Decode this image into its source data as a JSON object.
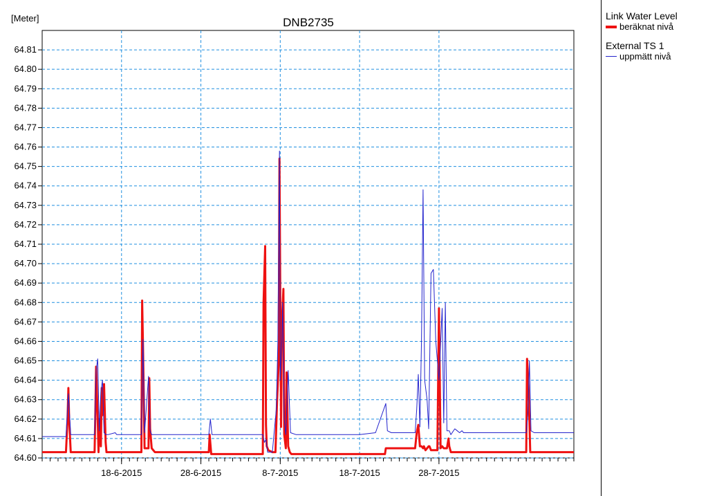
{
  "chart_data": {
    "type": "line",
    "title": "DNB2735",
    "ylabel": "[Meter]",
    "ylim": [
      64.6,
      64.82
    ],
    "xlim": [
      "2015-06-08",
      "2015-08-14"
    ],
    "y_ticks": [
      "64.60",
      "64.61",
      "64.62",
      "64.63",
      "64.64",
      "64.65",
      "64.66",
      "64.67",
      "64.68",
      "64.69",
      "64.70",
      "64.71",
      "64.72",
      "64.73",
      "64.74",
      "64.75",
      "64.76",
      "64.77",
      "64.78",
      "64.79",
      "64.80",
      "64.81"
    ],
    "x_tick_labels": [
      {
        "date": "2015-06-18",
        "label": "18-6-2015"
      },
      {
        "date": "2015-06-28",
        "label": "28-6-2015"
      },
      {
        "date": "2015-07-08",
        "label": "8-7-2015"
      },
      {
        "date": "2015-07-18",
        "label": "18-7-2015"
      },
      {
        "date": "2015-07-28",
        "label": "28-7-2015"
      }
    ],
    "grid": true,
    "legend_placement": "right",
    "series": [
      {
        "group": "Link Water Level",
        "name": "beräknat nivå",
        "color": "#ee1111",
        "x": [
          "2015-06-08",
          "2015-06-11",
          "2015-06-11.2",
          "2015-06-11.3",
          "2015-06-11.4",
          "2015-06-11.6",
          "2015-06-14.6",
          "2015-06-14.7",
          "2015-06-14.8",
          "2015-06-15",
          "2015-06-15.1",
          "2015-06-15.2",
          "2015-06-15.4",
          "2015-06-15.5",
          "2015-06-15.6",
          "2015-06-15.8",
          "2015-06-16",
          "2015-06-16.1",
          "2015-06-16.2",
          "2015-06-16.4",
          "2015-06-16.5",
          "2015-06-16.7",
          "2015-06-17",
          "2015-06-17.1",
          "2015-06-17.2",
          "2015-06-17.3",
          "2015-06-17.5",
          "2015-06-17.6",
          "2015-06-17.8",
          "2015-06-18",
          "2015-06-20.5",
          "2015-06-20.6",
          "2015-06-20.7",
          "2015-06-20.9",
          "2015-06-21.1",
          "2015-06-21.4",
          "2015-06-21.5",
          "2015-06-21.6",
          "2015-06-21.8",
          "2015-06-22.2",
          "2015-06-29",
          "2015-06-29.1",
          "2015-06-29.3",
          "2015-07-05.8",
          "2015-07-05.9",
          "2015-07-06.1",
          "2015-07-06.2",
          "2015-07-06.3",
          "2015-07-06.5",
          "2015-07-07",
          "2015-07-07.4",
          "2015-07-07.6",
          "2015-07-07.8",
          "2015-07-07.9",
          "2015-07-08.1",
          "2015-07-08.2",
          "2015-07-08.4",
          "2015-07-08.5",
          "2015-07-08.7",
          "2015-07-08.8",
          "2015-07-09",
          "2015-07-09.2",
          "2015-07-09.4",
          "2015-07-09.6",
          "2015-07-10",
          "2015-07-18",
          "2015-07-21.2",
          "2015-07-21.3",
          "2015-07-21.5",
          "2015-07-22",
          "2015-07-25",
          "2015-07-25.2",
          "2015-07-25.4",
          "2015-07-25.6",
          "2015-07-25.8",
          "2015-07-26",
          "2015-07-26.1",
          "2015-07-26.3",
          "2015-07-26.5",
          "2015-07-26.7",
          "2015-07-26.8",
          "2015-07-27",
          "2015-07-27.3",
          "2015-07-27.6",
          "2015-07-27.8",
          "2015-07-28",
          "2015-07-28.2",
          "2015-07-28.4",
          "2015-07-28.6",
          "2015-07-28.8",
          "2015-07-29",
          "2015-07-29.2",
          "2015-07-29.3",
          "2015-07-29.5",
          "2015-07-30",
          "2015-07-30.2",
          "2015-07-30.4",
          "2015-07-30.7",
          "2015-07-30.9",
          "2015-07-31.1",
          "2015-08-08",
          "2015-08-08.1",
          "2015-08-08.3",
          "2015-08-08.5",
          "2015-08-14"
        ],
        "y": [
          64.603,
          64.603,
          64.62,
          64.636,
          64.62,
          64.603,
          64.603,
          64.623,
          64.647,
          64.62,
          64.603,
          64.62,
          64.606,
          64.636,
          64.622,
          64.638,
          64.608,
          64.603,
          64.603,
          64.603,
          64.603,
          64.603,
          64.603,
          64.603,
          64.603,
          64.603,
          64.603,
          64.603,
          64.603,
          64.603,
          64.603,
          64.681,
          64.658,
          64.605,
          64.605,
          64.605,
          64.641,
          64.615,
          64.605,
          64.603,
          64.603,
          64.612,
          64.602,
          64.602,
          64.68,
          64.709,
          64.617,
          64.606,
          64.604,
          64.603,
          64.603,
          64.629,
          64.648,
          64.754,
          64.616,
          64.668,
          64.687,
          64.612,
          64.605,
          64.644,
          64.606,
          64.603,
          64.602,
          64.602,
          64.602,
          64.602,
          64.602,
          64.605,
          64.605,
          64.605,
          64.605,
          64.613,
          64.617,
          64.606,
          64.606,
          64.605,
          64.606,
          64.604,
          64.605,
          64.606,
          64.606,
          64.604,
          64.604,
          64.604,
          64.604,
          64.677,
          64.605,
          64.606,
          64.605,
          64.605,
          64.605,
          64.61,
          64.606,
          64.603,
          64.603,
          64.603,
          64.603,
          64.603,
          64.603,
          64.603,
          64.603,
          64.651,
          64.634,
          64.603,
          64.603
        ]
      },
      {
        "group": "External TS 1",
        "name": "uppmätt nivå",
        "color": "#2222cc",
        "x": [
          "2015-06-08",
          "2015-06-11",
          "2015-06-11.3",
          "2015-06-11.6",
          "2015-06-14.6",
          "2015-06-14.8",
          "2015-06-15",
          "2015-06-15.2",
          "2015-06-15.4",
          "2015-06-15.6",
          "2015-06-15.8",
          "2015-06-16",
          "2015-06-16.3",
          "2015-06-17.2",
          "2015-06-17.4",
          "2015-06-18",
          "2015-06-20.5",
          "2015-06-20.7",
          "2015-06-20.9",
          "2015-06-21.4",
          "2015-06-21.6",
          "2015-06-21.8",
          "2015-06-29",
          "2015-06-29.2",
          "2015-06-29.4",
          "2015-07-05.8",
          "2015-07-06",
          "2015-07-06.2",
          "2015-07-06.4",
          "2015-07-07",
          "2015-07-07.5",
          "2015-07-07.7",
          "2015-07-07.9",
          "2015-07-08",
          "2015-07-08.2",
          "2015-07-08.3",
          "2015-07-08.5",
          "2015-07-08.7",
          "2015-07-09",
          "2015-07-09.3",
          "2015-07-10",
          "2015-07-18",
          "2015-07-20",
          "2015-07-21.3",
          "2015-07-21.5",
          "2015-07-22",
          "2015-07-25",
          "2015-07-25.2",
          "2015-07-25.4",
          "2015-07-25.6",
          "2015-07-25.8",
          "2015-07-26",
          "2015-07-26.2",
          "2015-07-26.5",
          "2015-07-26.7",
          "2015-07-27",
          "2015-07-27.3",
          "2015-07-27.6",
          "2015-07-28",
          "2015-07-28.4",
          "2015-07-28.6",
          "2015-07-28.8",
          "2015-07-29",
          "2015-07-29.3",
          "2015-07-29.5",
          "2015-07-30",
          "2015-07-30.3",
          "2015-07-30.6",
          "2015-07-30.9",
          "2015-07-31.1",
          "2015-08-01",
          "2015-08-03",
          "2015-08-08",
          "2015-08-08.2",
          "2015-08-08.4",
          "2015-08-08.6",
          "2015-08-09",
          "2015-08-14"
        ],
        "y": [
          64.611,
          64.611,
          64.633,
          64.612,
          64.612,
          64.645,
          64.651,
          64.614,
          64.634,
          64.64,
          64.613,
          64.612,
          64.612,
          64.613,
          64.612,
          64.612,
          64.612,
          64.661,
          64.613,
          64.642,
          64.614,
          64.612,
          64.612,
          64.62,
          64.612,
          64.612,
          64.608,
          64.6095,
          64.603,
          64.603,
          64.625,
          64.66,
          64.758,
          64.64,
          64.66,
          64.68,
          64.62,
          64.612,
          64.645,
          64.613,
          64.612,
          64.612,
          64.613,
          64.628,
          64.614,
          64.613,
          64.613,
          64.625,
          64.643,
          64.616,
          64.66,
          64.738,
          64.64,
          64.63,
          64.615,
          64.695,
          64.697,
          64.66,
          64.64,
          64.677,
          64.618,
          64.68,
          64.614,
          64.614,
          64.612,
          64.615,
          64.614,
          64.613,
          64.614,
          64.613,
          64.613,
          64.613,
          64.613,
          64.622,
          64.65,
          64.614,
          64.613,
          64.613
        ]
      }
    ]
  },
  "legend": {
    "groups": [
      {
        "title": "Link Water Level",
        "entry": "beräknat nivå",
        "color": "#ee1111",
        "thick": true
      },
      {
        "title": "External TS 1",
        "entry": "uppmätt nivå",
        "color": "#2222cc",
        "thick": false
      }
    ]
  }
}
